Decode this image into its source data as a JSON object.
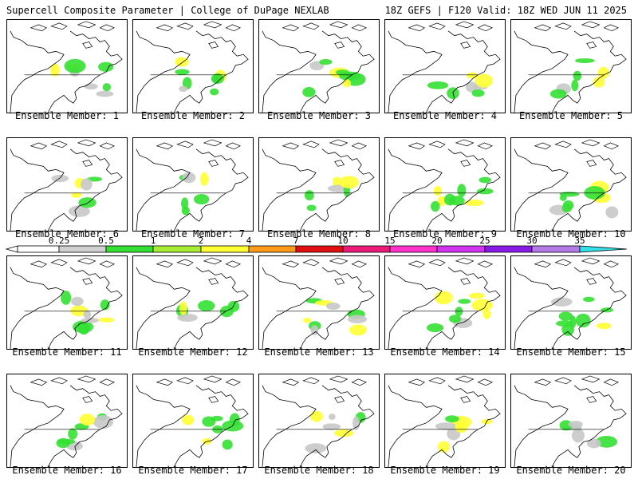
{
  "header": {
    "left": "Supercell Composite Parameter | College of DuPage NEXLAB",
    "right": "18Z GEFS | F120 Valid: 18Z WED JUN 11 2025"
  },
  "colorbar": {
    "ticks": [
      "0.25",
      "0.5",
      "1",
      "2",
      "4",
      "7",
      "10",
      "15",
      "20",
      "25",
      "30",
      "35"
    ],
    "colors": [
      "#ffffff",
      "#d0d0d0",
      "#33e033",
      "#a8ec33",
      "#ffff33",
      "#ff9a1a",
      "#e01010",
      "#ee1a7a",
      "#ff33cc",
      "#d133f0",
      "#8a1ae8",
      "#b37ae8",
      "#33e0e8"
    ]
  },
  "panels": [
    {
      "caption": "Ensemble Member: 1"
    },
    {
      "caption": "Ensemble Member: 2"
    },
    {
      "caption": "Ensemble Member: 3"
    },
    {
      "caption": "Ensemble Member: 4"
    },
    {
      "caption": "Ensemble Member: 5"
    },
    {
      "caption": "Ensemble Member: 6"
    },
    {
      "caption": "Ensemble Member: 7"
    },
    {
      "caption": "Ensemble Member: 8"
    },
    {
      "caption": "Ensemble Member: 9"
    },
    {
      "caption": "Ensemble Member: 10"
    },
    {
      "caption": "Ensemble Member: 11"
    },
    {
      "caption": "Ensemble Member: 12"
    },
    {
      "caption": "Ensemble Member: 13"
    },
    {
      "caption": "Ensemble Member: 14"
    },
    {
      "caption": "Ensemble Member: 15"
    },
    {
      "caption": "Ensemble Member: 16"
    },
    {
      "caption": "Ensemble Member: 17"
    },
    {
      "caption": "Ensemble Member: 18"
    },
    {
      "caption": "Ensemble Member: 19"
    },
    {
      "caption": "Ensemble Member: 20"
    }
  ]
}
